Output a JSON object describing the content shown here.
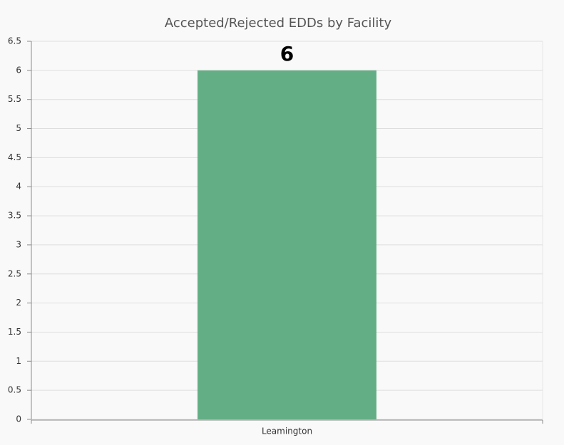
{
  "chart_data": {
    "type": "bar",
    "title": "Accepted/Rejected EDDs by Facility",
    "categories": [
      "Leamington"
    ],
    "values": [
      6
    ],
    "color": "#64ae85",
    "ylim": [
      0,
      6.5
    ],
    "yticks": [
      0,
      0.5,
      1,
      1.5,
      2,
      2.5,
      3,
      3.5,
      4,
      4.5,
      5,
      5.5,
      6,
      6.5
    ],
    "grid": true
  }
}
